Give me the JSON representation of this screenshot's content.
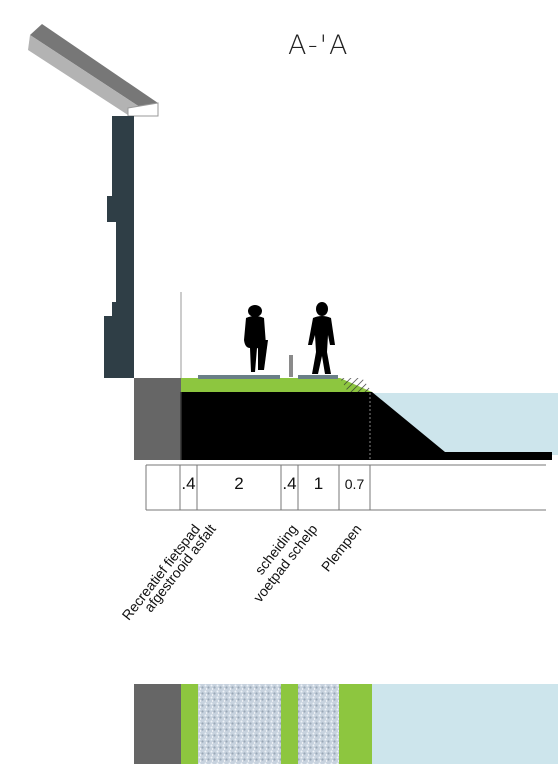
{
  "title": "A-'A",
  "dimensions": [
    ".4",
    "2",
    ".4",
    "1",
    "0.7"
  ],
  "labels": {
    "fietspad_1": "Recreatief fietspad",
    "fietspad_2": "afgestrooid asfalt",
    "scheiding": "scheiding",
    "voetpad": "voetpad schelp",
    "plempen": "Plempen"
  },
  "colors": {
    "grass": "#8dc63f",
    "water": "#cde5ec",
    "asphalt": "#000000",
    "wall": "#2f3e46",
    "edge": "#666666"
  }
}
